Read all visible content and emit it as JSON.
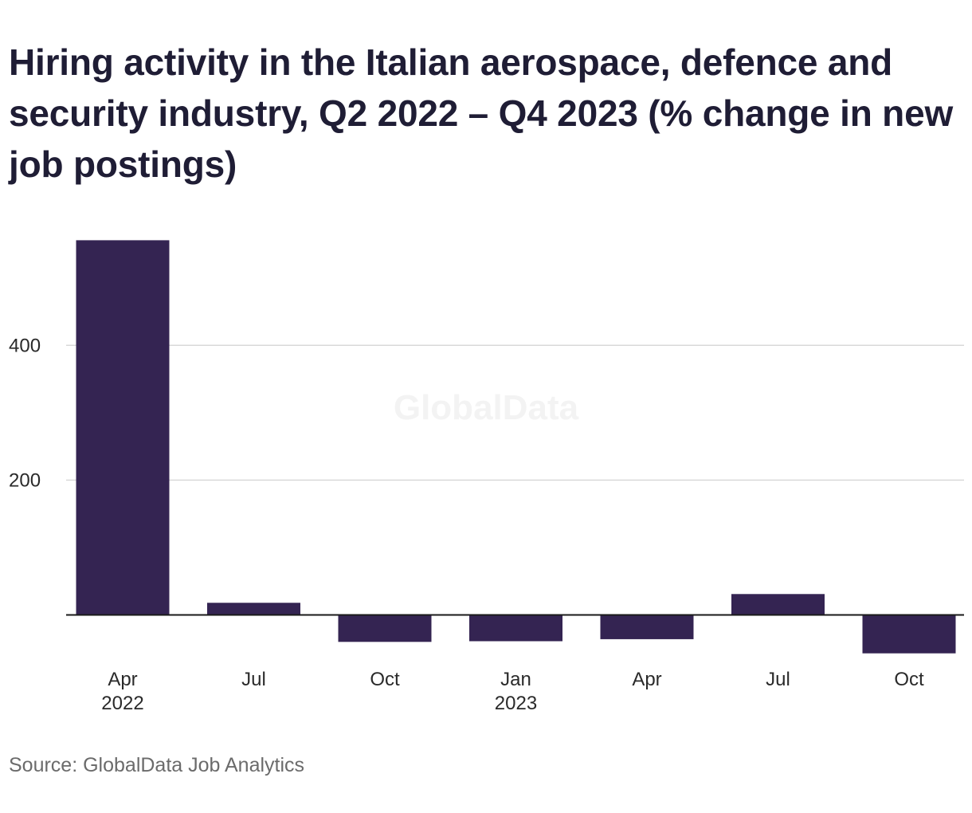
{
  "chart_data": {
    "type": "bar",
    "title": "Hiring activity in the Italian aerospace, defence and security industry, Q2 2022 – Q4 2023 (% change in new job postings)",
    "categories": [
      "Apr 2022",
      "Jul",
      "Oct",
      "Jan 2023",
      "Apr",
      "Jul",
      "Oct"
    ],
    "x_tick_labels": [
      [
        "Apr",
        "2022"
      ],
      [
        "Jul"
      ],
      [
        "Oct"
      ],
      [
        "Jan",
        "2023"
      ],
      [
        "Apr"
      ],
      [
        "Jul"
      ],
      [
        "Oct"
      ]
    ],
    "values": [
      556,
      18,
      -40,
      -39,
      -36,
      31,
      -57
    ],
    "ylim": [
      -60,
      560
    ],
    "yticks": [
      200,
      400
    ],
    "xlabel": "",
    "ylabel": "",
    "grid": true,
    "legend": "none",
    "bar_color": "#342452",
    "watermark": "GlobalData"
  },
  "source": "Source: GlobalData Job Analytics"
}
